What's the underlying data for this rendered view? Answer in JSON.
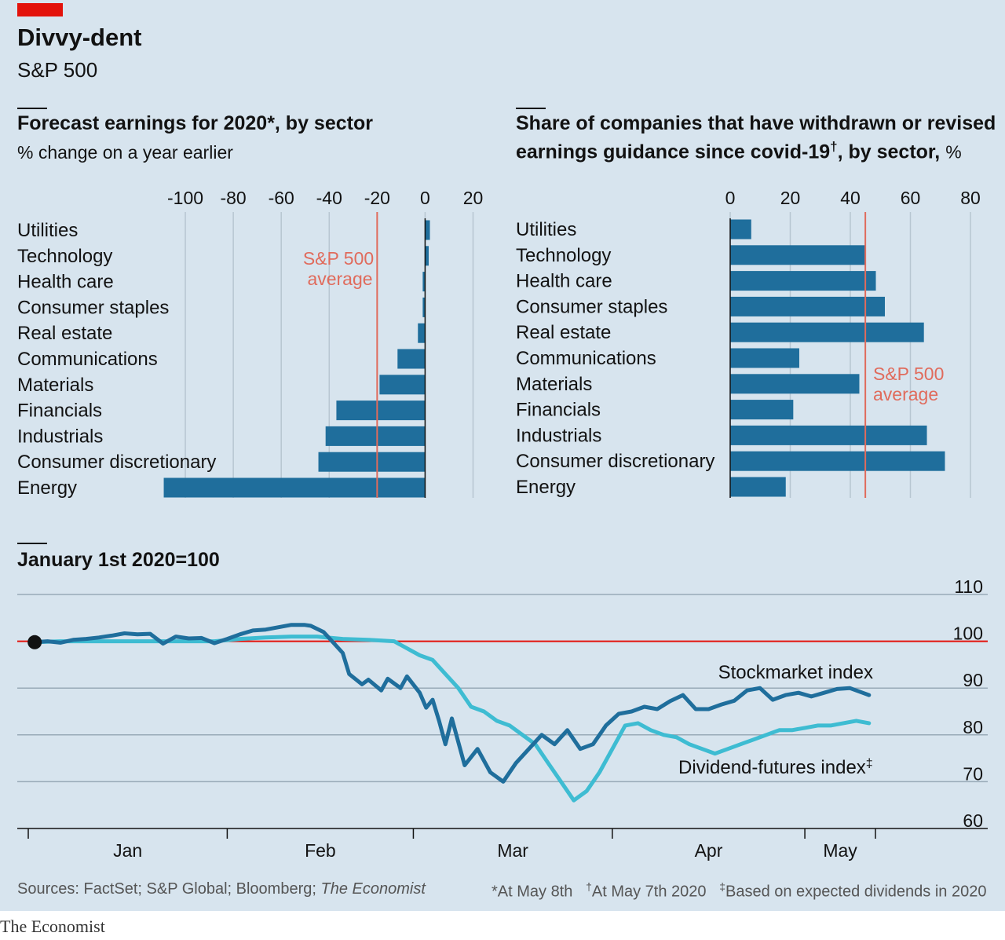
{
  "header": {
    "title": "Divvy-dent",
    "subtitle": "S&P 500"
  },
  "chart_data": [
    {
      "type": "bar",
      "orientation": "horizontal",
      "title": "Forecast earnings for 2020*, by sector",
      "subtitle": "% change on a year earlier",
      "categories": [
        "Utilities",
        "Technology",
        "Health care",
        "Consumer staples",
        "Real estate",
        "Communications",
        "Materials",
        "Financials",
        "Industrials",
        "Consumer discretionary",
        "Energy"
      ],
      "values": [
        2,
        1.5,
        -1,
        -1,
        -3,
        -11.5,
        -19,
        -37,
        -41.5,
        -44.5,
        -109
      ],
      "xlim": [
        -110,
        20
      ],
      "ticks": [
        "-100",
        "-80",
        "-60",
        "-40",
        "-20",
        "0",
        "20"
      ],
      "tick_values": [
        -100,
        -80,
        -60,
        -40,
        -20,
        0,
        20
      ],
      "reference_line": {
        "value": -20,
        "label_line1": "S&P 500",
        "label_line2": "average"
      },
      "grid": true
    },
    {
      "type": "bar",
      "orientation": "horizontal",
      "title_line1": "Share of companies that have withdrawn or revised",
      "title_line2": "earnings guidance since covid-19",
      "title_dagger": "†",
      "title_suffix": ", by sector,",
      "title_unit": "%",
      "categories": [
        "Utilities",
        "Technology",
        "Health care",
        "Consumer staples",
        "Real estate",
        "Communications",
        "Materials",
        "Financials",
        "Industrials",
        "Consumer discretionary",
        "Energy"
      ],
      "values": [
        7,
        45,
        48.5,
        51.5,
        64.5,
        23,
        43,
        21,
        65.5,
        71.5,
        18.5
      ],
      "xlim": [
        0,
        80
      ],
      "ticks": [
        "0",
        "20",
        "40",
        "60",
        "80"
      ],
      "tick_values": [
        0,
        20,
        40,
        60,
        80
      ],
      "reference_line": {
        "value": 45,
        "label_line1": "S&P 500",
        "label_line2": "average"
      },
      "grid": true
    },
    {
      "type": "line",
      "title": "January 1st 2020=100",
      "ylim": [
        60,
        110
      ],
      "yticks": [
        "110",
        "100",
        "90",
        "80",
        "70",
        "60"
      ],
      "ytick_values": [
        110,
        100,
        90,
        80,
        70,
        60
      ],
      "xlim": [
        0,
        132
      ],
      "xtick_positions": [
        0,
        31,
        60,
        91,
        121,
        132
      ],
      "xticks_labels": [
        "Jan",
        "Feb",
        "Mar",
        "Apr",
        "May"
      ],
      "xlabel_positions": [
        15.5,
        45.5,
        75.5,
        106,
        126.5
      ],
      "reference_line": {
        "value": 100
      },
      "start_marker": {
        "x": 1,
        "y": 99.8
      },
      "series": [
        {
          "name": "Stockmarket index",
          "color": "#1f6e9c",
          "x": [
            1,
            3,
            5,
            7,
            9,
            11,
            13,
            15,
            17,
            19,
            21,
            23,
            25,
            27,
            29,
            31,
            33,
            35,
            37,
            39,
            41,
            43,
            44,
            46,
            47,
            49,
            50,
            52,
            53,
            55,
            56,
            58,
            59,
            61,
            62,
            63,
            64,
            65,
            66,
            68,
            70,
            72,
            74,
            76,
            78,
            80,
            82,
            84,
            86,
            88,
            90,
            92,
            94,
            96,
            98,
            100,
            102,
            104,
            106,
            108,
            110,
            112,
            114,
            116,
            118,
            120,
            122,
            124,
            126,
            128,
            130,
            131
          ],
          "y": [
            99.8,
            100,
            99.7,
            100.3,
            100.5,
            100.8,
            101.2,
            101.7,
            101.5,
            101.6,
            99.5,
            101,
            100.6,
            100.7,
            99.6,
            100.5,
            101.5,
            102.3,
            102.5,
            103,
            103.5,
            103.5,
            103.3,
            102,
            100.5,
            97.5,
            93,
            90.8,
            91.8,
            89.5,
            92,
            90,
            92.5,
            89,
            85.8,
            87.5,
            83,
            78,
            83.5,
            73.5,
            77,
            72,
            70,
            74,
            77,
            80,
            78,
            81,
            77,
            78,
            82,
            84.5,
            85,
            86,
            85.5,
            87.2,
            88.5,
            85.5,
            85.5,
            86.5,
            87.3,
            89.5,
            90,
            87.5,
            88.5,
            89,
            88.2,
            89,
            89.8,
            90,
            89,
            88.5
          ]
        },
        {
          "name": "Dividend-futures index",
          "name_mark": "‡",
          "color": "#3ebcd2",
          "x": [
            1,
            5,
            9,
            13,
            17,
            21,
            25,
            29,
            33,
            37,
            41,
            45,
            49,
            53,
            57,
            61,
            63,
            65,
            67,
            69,
            71,
            73,
            75,
            77,
            79,
            81,
            83,
            85,
            87,
            89,
            91,
            93,
            95,
            97,
            99,
            101,
            103,
            105,
            107,
            109,
            111,
            113,
            115,
            117,
            119,
            121,
            123,
            125,
            127,
            129,
            131
          ],
          "y": [
            99.8,
            100,
            100,
            100,
            100,
            100,
            100,
            100,
            100.5,
            100.8,
            101,
            101,
            100.5,
            100.3,
            100,
            97,
            96,
            93,
            90,
            86,
            85,
            83,
            82,
            80,
            78,
            74,
            70,
            66,
            68,
            72,
            77,
            82,
            82.5,
            81,
            80,
            79.5,
            78,
            77,
            76,
            77,
            78,
            79,
            80,
            81,
            81,
            81.5,
            82,
            82,
            82.5,
            83,
            82.5
          ]
        }
      ]
    }
  ],
  "footer": {
    "sources": "Sources: FactSet; S&P Global; Bloomberg; ",
    "sources_italic": "The Economist",
    "note1": "*At May 8th",
    "note2_mark": "†",
    "note2": "At May 7th 2020",
    "note3_mark": "‡",
    "note3": "Based on expected dividends in 2020"
  },
  "brand": "The Economist",
  "colors": {
    "background": "#d7e4ee",
    "bar": "#1f6e9c",
    "average_line": "#e06b5c",
    "reference_red": "#e3120b",
    "dividend_line": "#3ebcd2",
    "grid": "#b7c6d1"
  }
}
